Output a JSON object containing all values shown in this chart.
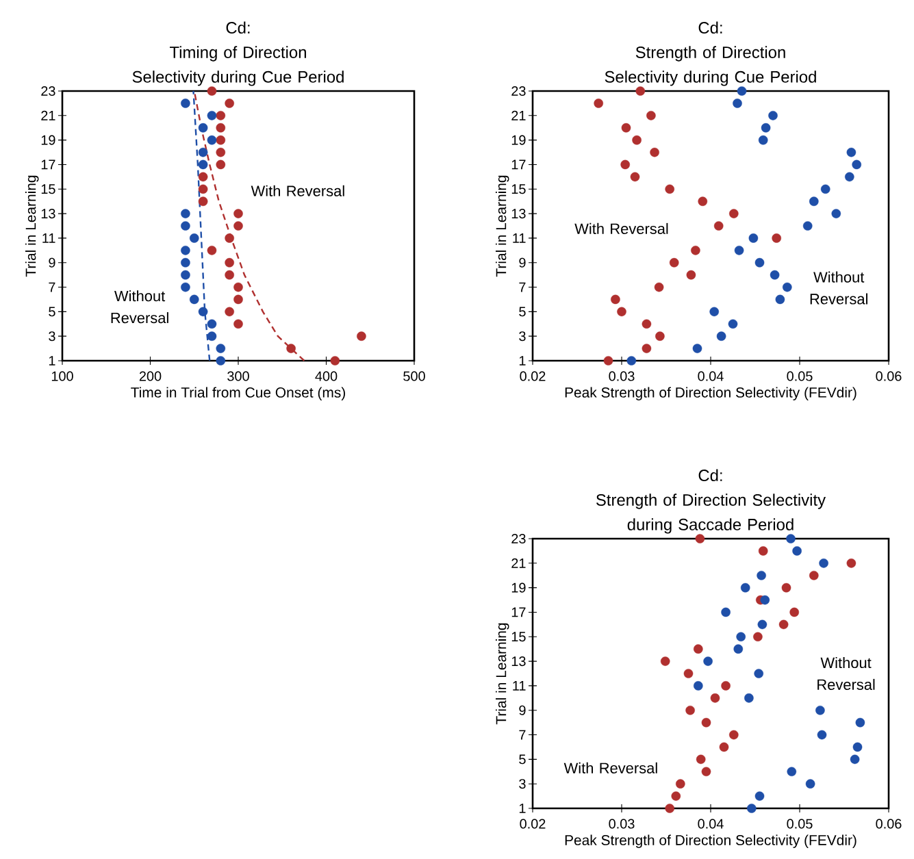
{
  "chart_data": [
    {
      "type": "scatter",
      "title": "Cd:",
      "subtitle": "Timing of Direction Selectivity during Cue Period",
      "xlabel": "Time in Trial from Cue Onset (ms)",
      "ylabel": "Trial in Learning",
      "marker": "circle",
      "xlim": [
        100,
        500
      ],
      "xticks": [
        100,
        200,
        300,
        400,
        500
      ],
      "ylim": [
        1,
        23
      ],
      "yticks": [
        1,
        3,
        5,
        7,
        9,
        11,
        13,
        15,
        17,
        19,
        21,
        23
      ],
      "series": [
        {
          "color": "#b0302f",
          "x": [
            410,
            360,
            440,
            300,
            290,
            300,
            300,
            290,
            290,
            270,
            290,
            300,
            300,
            260,
            260,
            260,
            280,
            280,
            280,
            280,
            280,
            290,
            270
          ],
          "values": [
            1,
            2,
            3,
            4,
            5,
            6,
            7,
            8,
            9,
            10,
            11,
            12,
            13,
            14,
            15,
            16,
            17,
            18,
            19,
            20,
            21,
            22,
            23
          ]
        },
        {
          "color": "#1f4fa8",
          "x": [
            280,
            280,
            270,
            270,
            260,
            250,
            240,
            240,
            240,
            240,
            250,
            240,
            240,
            260,
            260,
            270,
            260,
            270,
            240
          ],
          "values": [
            1,
            2,
            3,
            4,
            5,
            6,
            7,
            8,
            9,
            10,
            11,
            12,
            13,
            17,
            18,
            19,
            20,
            21,
            22
          ]
        },
        {
          "type": "line",
          "marker": "none",
          "line_style": "dashed",
          "color": "#b0302f",
          "x": [
            375,
            345,
            328,
            307,
            292,
            278,
            267.5,
            258,
            250
          ],
          "values": [
            1,
            3,
            5,
            8,
            11,
            14,
            17,
            20,
            23
          ]
        },
        {
          "type": "line",
          "marker": "none",
          "line_style": "dashed",
          "color": "#1f4fa8",
          "x": [
            267.5,
            262,
            258,
            254,
            249
          ],
          "values": [
            1,
            5,
            11,
            17,
            23
          ]
        }
      ],
      "annotations": [
        "With Reversal",
        "Without Reversal"
      ]
    },
    {
      "type": "scatter",
      "title": "Cd:",
      "subtitle": "Strength of Direction Selectivity during Cue Period",
      "xlabel": "Peak Strength of Direction Selectivity (FEVdir)",
      "ylabel": "Trial in Learning",
      "marker": "circle",
      "xlim": [
        0.02,
        0.06
      ],
      "xticks": [
        0.02,
        0.03,
        0.04,
        0.05,
        0.06
      ],
      "ylim": [
        1,
        23
      ],
      "yticks": [
        1,
        3,
        5,
        7,
        9,
        11,
        13,
        15,
        17,
        19,
        21,
        23
      ],
      "series": [
        {
          "color": "#b0302f",
          "x": [
            0.0285,
            0.0328,
            0.0343,
            0.0328,
            0.03,
            0.0293,
            0.0342,
            0.0378,
            0.0359,
            0.0383,
            0.0474,
            0.0409,
            0.0426,
            0.0391,
            0.0354,
            0.0315,
            0.0304,
            0.0337,
            0.0317,
            0.0305,
            0.0333,
            0.0274,
            0.0321
          ],
          "values": [
            1,
            2,
            3,
            4,
            5,
            6,
            7,
            8,
            9,
            10,
            11,
            12,
            13,
            14,
            15,
            16,
            17,
            18,
            19,
            20,
            21,
            22,
            23
          ]
        },
        {
          "color": "#1f4fa8",
          "x": [
            0.0311,
            0.0385,
            0.0412,
            0.0425,
            0.0404,
            0.0478,
            0.0486,
            0.0472,
            0.0455,
            0.0432,
            0.0448,
            0.0509,
            0.0541,
            0.0516,
            0.0529,
            0.0556,
            0.0564,
            0.0558,
            0.0459,
            0.0462,
            0.047,
            0.043,
            0.0435
          ],
          "values": [
            1,
            2,
            3,
            4,
            5,
            6,
            7,
            8,
            9,
            10,
            11,
            12,
            13,
            14,
            15,
            16,
            17,
            18,
            19,
            20,
            21,
            22,
            23
          ]
        }
      ],
      "annotations": [
        "With Reversal",
        "Without Reversal"
      ]
    },
    {
      "type": "scatter",
      "title": "Cd:",
      "subtitle": "Strength of Direction Selectivity during Saccade Period",
      "xlabel": "Peak Strength of Direction Selectivity (FEVdir)",
      "ylabel": "Trial in Learning",
      "marker": "circle",
      "xlim": [
        0.02,
        0.06
      ],
      "xticks": [
        0.02,
        0.03,
        0.04,
        0.05,
        0.06
      ],
      "ylim": [
        1,
        23
      ],
      "yticks": [
        1,
        3,
        5,
        7,
        9,
        11,
        13,
        15,
        17,
        19,
        21,
        23
      ],
      "series": [
        {
          "color": "#b0302f",
          "x": [
            0.0354,
            0.0361,
            0.0366,
            0.0395,
            0.0389,
            0.0415,
            0.0426,
            0.0395,
            0.0377,
            0.0405,
            0.0417,
            0.0375,
            0.0349,
            0.0386,
            0.0453,
            0.0482,
            0.0494,
            0.0456,
            0.0485,
            0.0516,
            0.0558,
            0.0459,
            0.0388
          ],
          "values": [
            1,
            2,
            3,
            4,
            5,
            6,
            7,
            8,
            9,
            10,
            11,
            12,
            13,
            14,
            15,
            16,
            17,
            18,
            19,
            20,
            21,
            22,
            23
          ]
        },
        {
          "color": "#1f4fa8",
          "x": [
            0.0446,
            0.0455,
            0.0512,
            0.0491,
            0.0562,
            0.0565,
            0.0525,
            0.0568,
            0.0523,
            0.0443,
            0.0386,
            0.0454,
            0.0397,
            0.0431,
            0.0434,
            0.0458,
            0.0417,
            0.0461,
            0.0439,
            0.0457,
            0.0527,
            0.0497,
            0.049
          ],
          "values": [
            1,
            2,
            3,
            4,
            5,
            6,
            7,
            8,
            9,
            10,
            11,
            12,
            13,
            14,
            15,
            16,
            17,
            18,
            19,
            20,
            21,
            22,
            23
          ]
        }
      ],
      "annotations": [
        "With Reversal",
        "Without Reversal"
      ]
    }
  ]
}
